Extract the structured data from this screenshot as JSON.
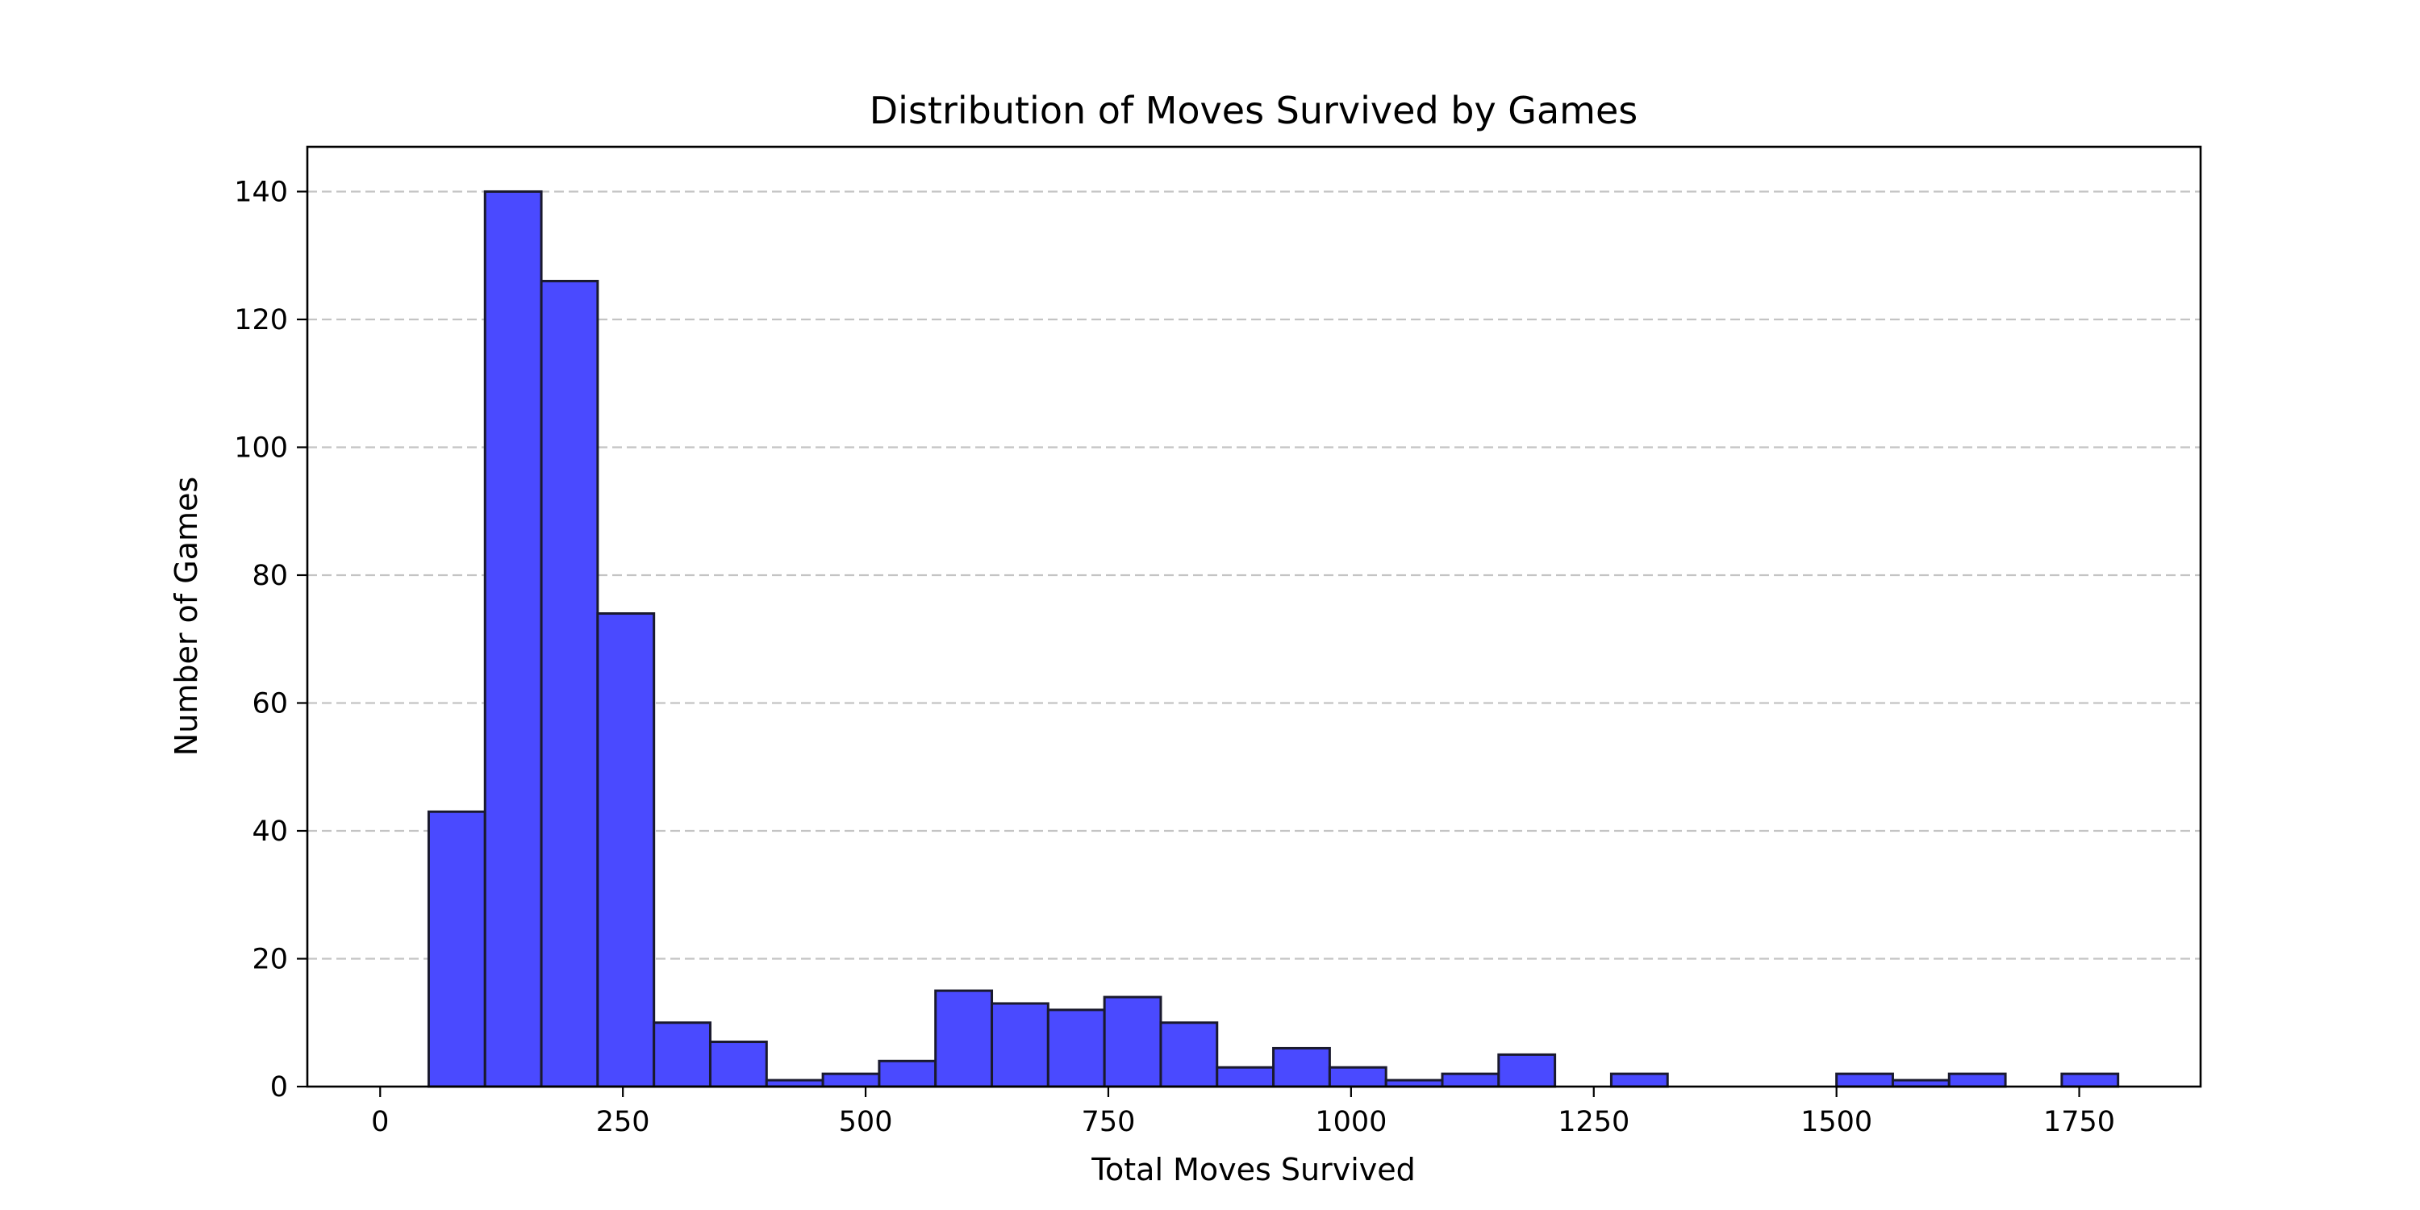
{
  "chart_data": {
    "type": "bar",
    "title": "Distribution of Moves Survived by Games",
    "xlabel": "Total Moves Survived",
    "ylabel": "Number of Games",
    "xlim": [
      -75,
      1875
    ],
    "ylim": [
      0,
      147
    ],
    "xticks": [
      0,
      250,
      500,
      750,
      1000,
      1250,
      1500,
      1750
    ],
    "yticks": [
      0,
      20,
      40,
      60,
      80,
      100,
      120,
      140
    ],
    "grid": "y-dashed",
    "bin_edges": [
      50,
      108,
      166,
      224,
      282,
      340,
      398,
      456,
      514,
      572,
      630,
      688,
      746,
      804,
      862,
      920,
      978,
      1036,
      1094,
      1152,
      1210,
      1268,
      1326,
      1384,
      1442,
      1500,
      1558,
      1616,
      1674,
      1732,
      1790
    ],
    "values": [
      43,
      140,
      126,
      74,
      10,
      7,
      1,
      2,
      4,
      15,
      13,
      12,
      14,
      10,
      3,
      6,
      3,
      1,
      2,
      5,
      0,
      2,
      0,
      0,
      0,
      2,
      1,
      2,
      0,
      2
    ],
    "colors": {
      "bar": "#4a4aff",
      "edge": "#1a1a2e",
      "grid": "#c4c4c4"
    }
  }
}
